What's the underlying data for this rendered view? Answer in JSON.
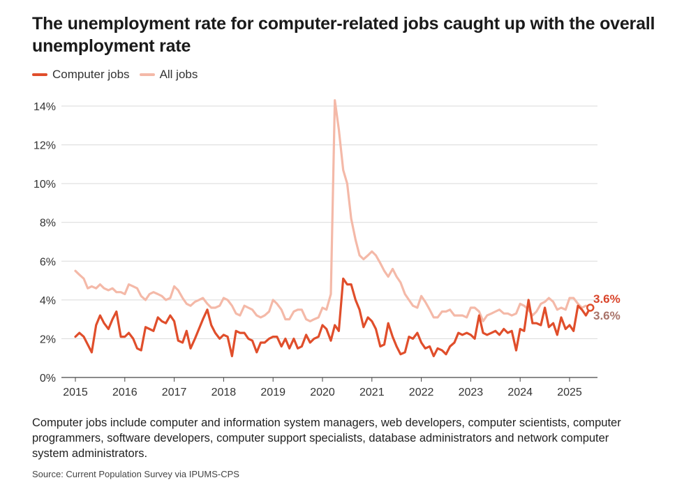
{
  "title": "The unemployment rate for computer-related jobs caught up with the overall unemployment rate",
  "note": "Computer jobs include computer and information system managers, web developers, computer scientists, computer programmers, software developers, computer support specialists, database administrators and network computer system administrators.",
  "source": "Source: Current Population Survey via IPUMS-CPS",
  "colors": {
    "computer": "#e04e2b",
    "all": "#f4b9a8",
    "grid": "#d9d9d9",
    "computer_label": "#d9442a",
    "all_label": "#a9746a"
  },
  "chart_data": {
    "type": "line",
    "x_unit": "year (monthly data)",
    "ylim": [
      0,
      14
    ],
    "yticks": [
      0,
      2,
      4,
      6,
      8,
      10,
      12,
      14
    ],
    "ytick_labels": [
      "0%",
      "2%",
      "4%",
      "6%",
      "8%",
      "10%",
      "12%",
      "14%"
    ],
    "xticks": [
      2015,
      2016,
      2017,
      2018,
      2019,
      2020,
      2021,
      2022,
      2023,
      2024,
      2025
    ],
    "xtick_labels": [
      "2015",
      "2016",
      "2017",
      "2018",
      "2019",
      "2020",
      "2021",
      "2022",
      "2023",
      "2024",
      "2025"
    ],
    "grid": true,
    "legend_position": "top-left",
    "series": [
      {
        "name": "Computer jobs",
        "end_label": "3.6%",
        "values": [
          [
            2015.0,
            2.1
          ],
          [
            2015.08,
            2.3
          ],
          [
            2015.17,
            2.1
          ],
          [
            2015.25,
            1.7
          ],
          [
            2015.33,
            1.3
          ],
          [
            2015.42,
            2.7
          ],
          [
            2015.5,
            3.2
          ],
          [
            2015.58,
            2.8
          ],
          [
            2015.67,
            2.5
          ],
          [
            2015.75,
            3.0
          ],
          [
            2015.83,
            3.4
          ],
          [
            2015.92,
            2.1
          ],
          [
            2016.0,
            2.1
          ],
          [
            2016.08,
            2.3
          ],
          [
            2016.17,
            2.0
          ],
          [
            2016.25,
            1.5
          ],
          [
            2016.33,
            1.4
          ],
          [
            2016.42,
            2.6
          ],
          [
            2016.5,
            2.5
          ],
          [
            2016.58,
            2.4
          ],
          [
            2016.67,
            3.1
          ],
          [
            2016.75,
            2.9
          ],
          [
            2016.83,
            2.8
          ],
          [
            2016.92,
            3.2
          ],
          [
            2017.0,
            2.9
          ],
          [
            2017.08,
            1.9
          ],
          [
            2017.17,
            1.8
          ],
          [
            2017.25,
            2.4
          ],
          [
            2017.33,
            1.5
          ],
          [
            2017.42,
            2.0
          ],
          [
            2017.5,
            2.5
          ],
          [
            2017.58,
            3.0
          ],
          [
            2017.67,
            3.5
          ],
          [
            2017.75,
            2.7
          ],
          [
            2017.83,
            2.3
          ],
          [
            2017.92,
            2.0
          ],
          [
            2018.0,
            2.2
          ],
          [
            2018.08,
            2.1
          ],
          [
            2018.17,
            1.1
          ],
          [
            2018.25,
            2.4
          ],
          [
            2018.33,
            2.3
          ],
          [
            2018.42,
            2.3
          ],
          [
            2018.5,
            2.0
          ],
          [
            2018.58,
            1.9
          ],
          [
            2018.67,
            1.3
          ],
          [
            2018.75,
            1.8
          ],
          [
            2018.83,
            1.8
          ],
          [
            2018.92,
            2.0
          ],
          [
            2019.0,
            2.1
          ],
          [
            2019.08,
            2.1
          ],
          [
            2019.17,
            1.6
          ],
          [
            2019.25,
            2.0
          ],
          [
            2019.33,
            1.5
          ],
          [
            2019.42,
            2.0
          ],
          [
            2019.5,
            1.5
          ],
          [
            2019.58,
            1.6
          ],
          [
            2019.67,
            2.2
          ],
          [
            2019.75,
            1.8
          ],
          [
            2019.83,
            2.0
          ],
          [
            2019.92,
            2.1
          ],
          [
            2020.0,
            2.7
          ],
          [
            2020.08,
            2.5
          ],
          [
            2020.17,
            1.9
          ],
          [
            2020.25,
            2.7
          ],
          [
            2020.33,
            2.4
          ],
          [
            2020.42,
            5.1
          ],
          [
            2020.5,
            4.8
          ],
          [
            2020.58,
            4.8
          ],
          [
            2020.67,
            4.0
          ],
          [
            2020.75,
            3.5
          ],
          [
            2020.83,
            2.6
          ],
          [
            2020.92,
            3.1
          ],
          [
            2021.0,
            2.9
          ],
          [
            2021.08,
            2.5
          ],
          [
            2021.17,
            1.6
          ],
          [
            2021.25,
            1.7
          ],
          [
            2021.33,
            2.8
          ],
          [
            2021.42,
            2.1
          ],
          [
            2021.5,
            1.6
          ],
          [
            2021.58,
            1.2
          ],
          [
            2021.67,
            1.3
          ],
          [
            2021.75,
            2.1
          ],
          [
            2021.83,
            2.0
          ],
          [
            2021.92,
            2.3
          ],
          [
            2022.0,
            1.8
          ],
          [
            2022.08,
            1.5
          ],
          [
            2022.17,
            1.6
          ],
          [
            2022.25,
            1.1
          ],
          [
            2022.33,
            1.5
          ],
          [
            2022.42,
            1.4
          ],
          [
            2022.5,
            1.2
          ],
          [
            2022.58,
            1.6
          ],
          [
            2022.67,
            1.8
          ],
          [
            2022.75,
            2.3
          ],
          [
            2022.83,
            2.2
          ],
          [
            2022.92,
            2.3
          ],
          [
            2023.0,
            2.2
          ],
          [
            2023.08,
            2.0
          ],
          [
            2023.17,
            3.2
          ],
          [
            2023.25,
            2.3
          ],
          [
            2023.33,
            2.2
          ],
          [
            2023.42,
            2.3
          ],
          [
            2023.5,
            2.4
          ],
          [
            2023.58,
            2.2
          ],
          [
            2023.67,
            2.5
          ],
          [
            2023.75,
            2.3
          ],
          [
            2023.83,
            2.4
          ],
          [
            2023.92,
            1.4
          ],
          [
            2024.0,
            2.5
          ],
          [
            2024.08,
            2.4
          ],
          [
            2024.17,
            4.0
          ],
          [
            2024.25,
            2.8
          ],
          [
            2024.33,
            2.8
          ],
          [
            2024.42,
            2.7
          ],
          [
            2024.5,
            3.6
          ],
          [
            2024.58,
            2.6
          ],
          [
            2024.67,
            2.8
          ],
          [
            2024.75,
            2.2
          ],
          [
            2024.83,
            3.1
          ],
          [
            2024.92,
            2.5
          ],
          [
            2025.0,
            2.7
          ],
          [
            2025.08,
            2.4
          ],
          [
            2025.17,
            3.7
          ],
          [
            2025.25,
            3.5
          ],
          [
            2025.33,
            3.2
          ],
          [
            2025.42,
            3.6
          ]
        ]
      },
      {
        "name": "All jobs",
        "end_label": "3.6%",
        "values": [
          [
            2015.0,
            5.5
          ],
          [
            2015.08,
            5.3
          ],
          [
            2015.17,
            5.1
          ],
          [
            2015.25,
            4.6
          ],
          [
            2015.33,
            4.7
          ],
          [
            2015.42,
            4.6
          ],
          [
            2015.5,
            4.8
          ],
          [
            2015.58,
            4.6
          ],
          [
            2015.67,
            4.5
          ],
          [
            2015.75,
            4.6
          ],
          [
            2015.83,
            4.4
          ],
          [
            2015.92,
            4.4
          ],
          [
            2016.0,
            4.3
          ],
          [
            2016.08,
            4.8
          ],
          [
            2016.17,
            4.7
          ],
          [
            2016.25,
            4.6
          ],
          [
            2016.33,
            4.2
          ],
          [
            2016.42,
            4.0
          ],
          [
            2016.5,
            4.3
          ],
          [
            2016.58,
            4.4
          ],
          [
            2016.67,
            4.3
          ],
          [
            2016.75,
            4.2
          ],
          [
            2016.83,
            4.0
          ],
          [
            2016.92,
            4.1
          ],
          [
            2017.0,
            4.7
          ],
          [
            2017.08,
            4.5
          ],
          [
            2017.17,
            4.1
          ],
          [
            2017.25,
            3.8
          ],
          [
            2017.33,
            3.7
          ],
          [
            2017.42,
            3.9
          ],
          [
            2017.5,
            4.0
          ],
          [
            2017.58,
            4.1
          ],
          [
            2017.67,
            3.8
          ],
          [
            2017.75,
            3.6
          ],
          [
            2017.83,
            3.6
          ],
          [
            2017.92,
            3.7
          ],
          [
            2018.0,
            4.1
          ],
          [
            2018.08,
            4.0
          ],
          [
            2018.17,
            3.7
          ],
          [
            2018.25,
            3.3
          ],
          [
            2018.33,
            3.2
          ],
          [
            2018.42,
            3.7
          ],
          [
            2018.5,
            3.6
          ],
          [
            2018.58,
            3.5
          ],
          [
            2018.67,
            3.2
          ],
          [
            2018.75,
            3.1
          ],
          [
            2018.83,
            3.2
          ],
          [
            2018.92,
            3.4
          ],
          [
            2019.0,
            4.0
          ],
          [
            2019.08,
            3.8
          ],
          [
            2019.17,
            3.5
          ],
          [
            2019.25,
            3.0
          ],
          [
            2019.33,
            3.0
          ],
          [
            2019.42,
            3.4
          ],
          [
            2019.5,
            3.5
          ],
          [
            2019.58,
            3.5
          ],
          [
            2019.67,
            3.0
          ],
          [
            2019.75,
            2.9
          ],
          [
            2019.83,
            3.0
          ],
          [
            2019.92,
            3.1
          ],
          [
            2020.0,
            3.6
          ],
          [
            2020.08,
            3.5
          ],
          [
            2020.17,
            4.3
          ],
          [
            2020.25,
            14.3
          ],
          [
            2020.33,
            12.8
          ],
          [
            2020.42,
            10.7
          ],
          [
            2020.5,
            10.0
          ],
          [
            2020.58,
            8.2
          ],
          [
            2020.67,
            7.1
          ],
          [
            2020.75,
            6.3
          ],
          [
            2020.83,
            6.1
          ],
          [
            2020.92,
            6.3
          ],
          [
            2021.0,
            6.5
          ],
          [
            2021.08,
            6.3
          ],
          [
            2021.17,
            5.9
          ],
          [
            2021.25,
            5.5
          ],
          [
            2021.33,
            5.2
          ],
          [
            2021.42,
            5.6
          ],
          [
            2021.5,
            5.2
          ],
          [
            2021.58,
            4.9
          ],
          [
            2021.67,
            4.3
          ],
          [
            2021.75,
            4.0
          ],
          [
            2021.83,
            3.7
          ],
          [
            2021.92,
            3.6
          ],
          [
            2022.0,
            4.2
          ],
          [
            2022.08,
            3.9
          ],
          [
            2022.17,
            3.5
          ],
          [
            2022.25,
            3.1
          ],
          [
            2022.33,
            3.1
          ],
          [
            2022.42,
            3.4
          ],
          [
            2022.5,
            3.4
          ],
          [
            2022.58,
            3.5
          ],
          [
            2022.67,
            3.2
          ],
          [
            2022.75,
            3.2
          ],
          [
            2022.83,
            3.2
          ],
          [
            2022.92,
            3.1
          ],
          [
            2023.0,
            3.6
          ],
          [
            2023.08,
            3.6
          ],
          [
            2023.17,
            3.4
          ],
          [
            2023.25,
            2.9
          ],
          [
            2023.33,
            3.2
          ],
          [
            2023.42,
            3.3
          ],
          [
            2023.5,
            3.4
          ],
          [
            2023.58,
            3.5
          ],
          [
            2023.67,
            3.3
          ],
          [
            2023.75,
            3.3
          ],
          [
            2023.83,
            3.2
          ],
          [
            2023.92,
            3.3
          ],
          [
            2024.0,
            3.8
          ],
          [
            2024.08,
            3.7
          ],
          [
            2024.17,
            3.5
          ],
          [
            2024.25,
            3.2
          ],
          [
            2024.33,
            3.4
          ],
          [
            2024.42,
            3.8
          ],
          [
            2024.5,
            3.9
          ],
          [
            2024.58,
            4.1
          ],
          [
            2024.67,
            3.9
          ],
          [
            2024.75,
            3.5
          ],
          [
            2024.83,
            3.6
          ],
          [
            2024.92,
            3.5
          ],
          [
            2025.0,
            4.1
          ],
          [
            2025.08,
            4.1
          ],
          [
            2025.17,
            3.8
          ],
          [
            2025.25,
            3.6
          ],
          [
            2025.33,
            3.7
          ],
          [
            2025.42,
            3.6
          ]
        ]
      }
    ]
  }
}
